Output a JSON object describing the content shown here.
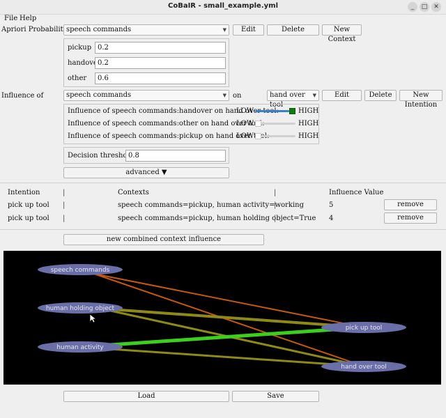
{
  "window": {
    "title": "CoBaIR - small_example.yml",
    "minimize_glyph": "_",
    "maximize_glyph": "□",
    "close_glyph": "✕"
  },
  "menu": [
    "File",
    "Help"
  ],
  "apriori": {
    "label": "Apriori Probability of",
    "selected": "speech commands",
    "edit": "Edit",
    "delete": "Delete",
    "new_context": "New Context",
    "items": [
      {
        "name": "pickup",
        "value": "0.2"
      },
      {
        "name": "handover",
        "value": "0.2"
      },
      {
        "name": "other",
        "value": "0.6"
      }
    ]
  },
  "influence": {
    "label": "Influence of",
    "selected_context": "speech commands",
    "on": "on",
    "selected_intention": "hand over tool",
    "edit": "Edit",
    "delete": "Delete",
    "new_intention": "New Intention",
    "rows": [
      {
        "text": "Influence of speech commands:handover on hand over tool:",
        "low": "LOW",
        "high": "HIGH",
        "level": 1.0
      },
      {
        "text": "Influence of speech commands:other on hand over tool:",
        "low": "LOW",
        "high": "HIGH",
        "level": 0.0
      },
      {
        "text": "Influence of speech commands:pickup on hand over tool:",
        "low": "LOW",
        "high": "HIGH",
        "level": 0.0
      }
    ],
    "threshold_label": "Decision threshold :",
    "threshold_value": "0.8",
    "advanced": "advanced ▼"
  },
  "table": {
    "headers": {
      "intention": "Intention",
      "contexts": "Contexts",
      "influence": "Influence Value"
    },
    "separator": "|",
    "rows": [
      {
        "intention": "pick up tool",
        "contexts": "speech commands=pickup, human activity=working",
        "value": "5",
        "action": "remove"
      },
      {
        "intention": "pick up tool",
        "contexts": "speech commands=pickup, human holding object=True",
        "value": "4",
        "action": "remove"
      }
    ],
    "new_combined": "new combined context influence"
  },
  "graph": {
    "nodes": {
      "speech_commands": "speech commands",
      "human_holding_object": "human holding object",
      "human_activity": "human activity",
      "pick_up_tool": "pick up tool",
      "hand_over_tool": "hand over tool"
    },
    "colors": {
      "node": "#6b6fa8",
      "node_text": "#e6e6f2",
      "edge_orange": "#c25a12",
      "edge_olive": "#8d8a17",
      "edge_green": "#3ccf1e"
    }
  },
  "footer": {
    "load": "Load",
    "save": "Save"
  }
}
